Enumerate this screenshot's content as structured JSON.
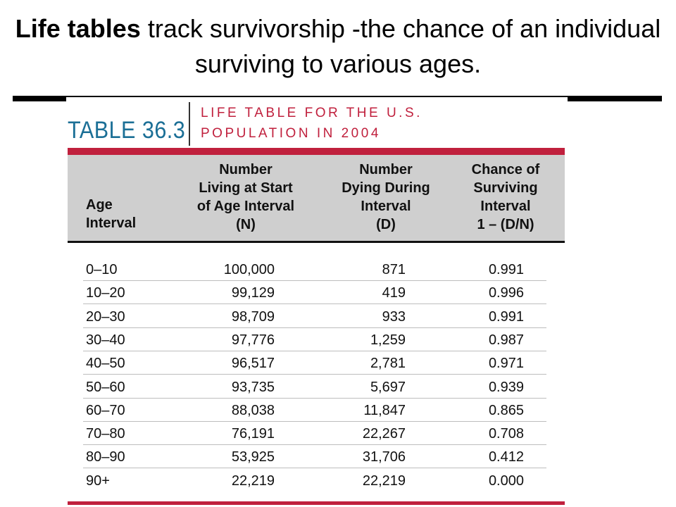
{
  "slide": {
    "title_bold": "Life tables",
    "title_rest": " track survivorship -the chance of an individual surviving to various ages."
  },
  "table": {
    "number": "TABLE 36.3",
    "caption_line1": "LIFE TABLE FOR THE U.S.",
    "caption_line2": "POPULATION IN 2004",
    "headers": {
      "age": [
        "Age",
        "Interval"
      ],
      "n": [
        "Number",
        "Living at Start",
        "of Age Interval",
        "(N)"
      ],
      "d": [
        "Number",
        "Dying During",
        "Interval",
        "(D)"
      ],
      "s": [
        "Chance of",
        "Surviving",
        "Interval",
        "1 – (D/N)"
      ]
    },
    "rows": [
      {
        "age": "0–10",
        "n": "100,000",
        "d": "871",
        "s": "0.991"
      },
      {
        "age": "10–20",
        "n": "99,129",
        "d": "419",
        "s": "0.996"
      },
      {
        "age": "20–30",
        "n": "98,709",
        "d": "933",
        "s": "0.991"
      },
      {
        "age": "30–40",
        "n": "97,776",
        "d": "1,259",
        "s": "0.987"
      },
      {
        "age": "40–50",
        "n": "96,517",
        "d": "2,781",
        "s": "0.971"
      },
      {
        "age": "50–60",
        "n": "93,735",
        "d": "5,697",
        "s": "0.939"
      },
      {
        "age": "60–70",
        "n": "88,038",
        "d": "11,847",
        "s": "0.865"
      },
      {
        "age": "70–80",
        "n": "76,191",
        "d": "22,267",
        "s": "0.708"
      },
      {
        "age": "80–90",
        "n": "53,925",
        "d": "31,706",
        "s": "0.412"
      },
      {
        "age": "90+",
        "n": "22,219",
        "d": "22,219",
        "s": "0.000"
      }
    ]
  },
  "colors": {
    "accent_red": "#c0203d",
    "accent_blue": "#1b6f96",
    "header_gray": "#cfcfcf"
  }
}
